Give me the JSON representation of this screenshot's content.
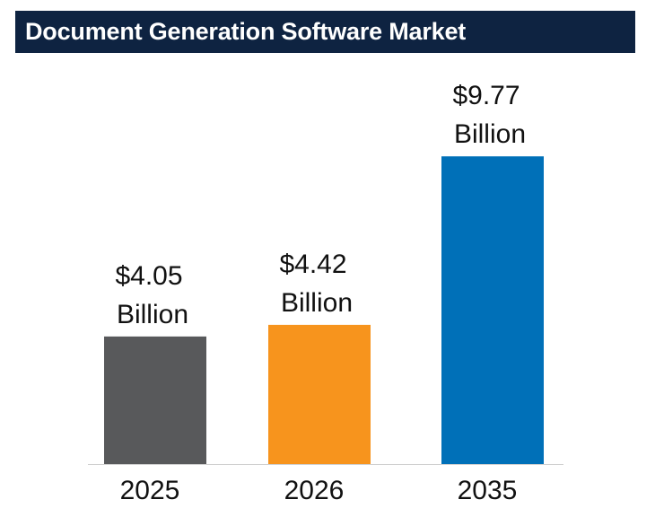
{
  "chart_data": {
    "type": "bar",
    "title": "Document Generation Software Market",
    "categories": [
      "2025",
      "2026",
      "2035"
    ],
    "values": [
      4.05,
      4.42,
      9.77
    ],
    "value_labels": [
      [
        "$4.05",
        "Billion"
      ],
      [
        "$4.42",
        "Billion"
      ],
      [
        "$9.77",
        "Billion"
      ]
    ],
    "colors": [
      "#58595b",
      "#f7941d",
      "#0070b8"
    ],
    "xlabel": "",
    "ylabel": "",
    "ylim": [
      0,
      11.4
    ],
    "grid": false,
    "legend": "none"
  },
  "colors": {
    "title_background": "#0e2341",
    "title_text": "#ffffff",
    "baseline": "#d0d0d0"
  }
}
